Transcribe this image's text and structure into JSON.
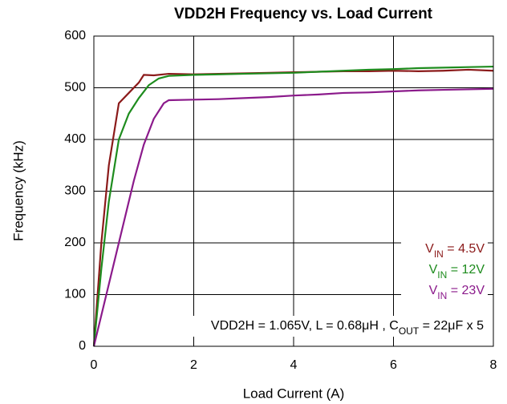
{
  "chart_data": {
    "type": "line",
    "title": "VDD2H Frequency vs. Load Current",
    "x_label": "Load Current (A)",
    "y_label": "Frequency (kHz)",
    "annotation": [
      {
        "text": "VDD2H = 1.065V, L = 0.68μH , C"
      },
      {
        "text": "OUT",
        "sub": true
      },
      {
        "text": " = 22μF x 5"
      }
    ],
    "xlim": [
      0,
      8
    ],
    "xticks": [
      0,
      2,
      4,
      6,
      8
    ],
    "ylim": [
      0,
      600
    ],
    "yticks": [
      0,
      100,
      200,
      300,
      400,
      500,
      600
    ],
    "grid": true,
    "legend": "lower right",
    "series": [
      {
        "name": [
          {
            "text": "V"
          },
          {
            "text": "IN",
            "sub": true
          },
          {
            "text": " = 4.5V"
          }
        ],
        "color": "#8b1a1a",
        "x": [
          0,
          0.15,
          0.3,
          0.5,
          0.7,
          0.9,
          1.0,
          1.2,
          1.5,
          2,
          2.5,
          3,
          3.5,
          4,
          4.5,
          5,
          5.5,
          6,
          6.5,
          7,
          7.5,
          8
        ],
        "values": [
          0,
          200,
          350,
          470,
          490,
          510,
          525,
          524,
          527,
          526,
          527,
          528,
          529,
          530,
          531,
          532,
          532,
          533,
          532,
          533,
          535,
          533
        ]
      },
      {
        "name": [
          {
            "text": "V"
          },
          {
            "text": "IN",
            "sub": true
          },
          {
            "text": " = 12V"
          }
        ],
        "color": "#1e8c1e",
        "x": [
          0,
          0.15,
          0.3,
          0.5,
          0.7,
          0.9,
          1.1,
          1.3,
          1.5,
          2,
          2.5,
          3,
          3.5,
          4,
          4.5,
          5,
          5.5,
          6,
          6.5,
          7,
          7.5,
          8
        ],
        "values": [
          0,
          150,
          280,
          400,
          450,
          480,
          505,
          518,
          523,
          525,
          526,
          527,
          528,
          529,
          531,
          533,
          535,
          536,
          538,
          539,
          540,
          541
        ]
      },
      {
        "name": [
          {
            "text": "V"
          },
          {
            "text": "IN",
            "sub": true
          },
          {
            "text": " = 23V"
          }
        ],
        "color": "#8b1a8b",
        "x": [
          0,
          0.5,
          0.8,
          1.0,
          1.2,
          1.4,
          1.5,
          2,
          2.5,
          3,
          3.5,
          4,
          4.5,
          5,
          5.5,
          6,
          6.5,
          7,
          7.5,
          8
        ],
        "values": [
          0,
          200,
          320,
          390,
          440,
          470,
          476,
          477,
          478,
          480,
          482,
          485,
          487,
          490,
          491,
          493,
          495,
          496,
          497,
          498
        ]
      }
    ]
  }
}
